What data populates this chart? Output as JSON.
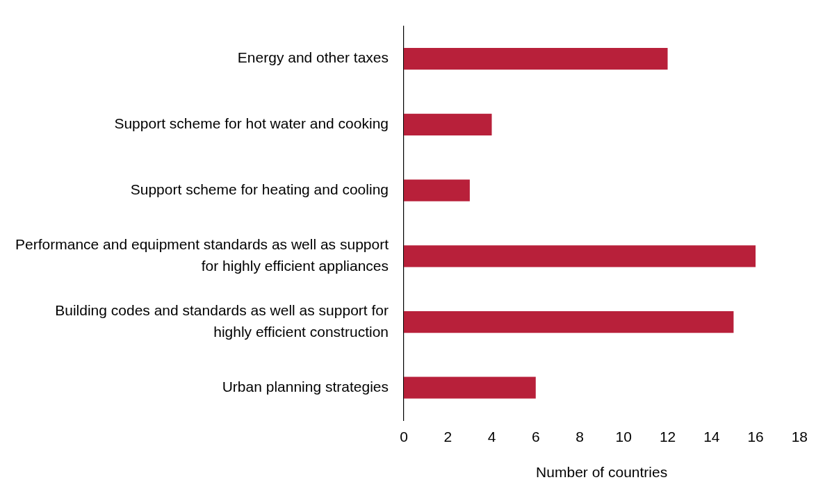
{
  "chart_data": {
    "type": "bar",
    "orientation": "horizontal",
    "xlabel": "Number of countries",
    "categories": [
      "Energy and other taxes",
      "Support scheme for hot water and cooking",
      "Support scheme for heating and cooling",
      "Performance and equipment standards as well as support for highly efficient appliances",
      "Building codes and standards as well as support for highly efficient construction",
      "Urban planning strategies"
    ],
    "values": [
      12,
      4,
      3,
      16,
      15,
      6
    ],
    "color": "#b8203a",
    "xlim": [
      0,
      18
    ],
    "xticks": [
      0,
      2,
      4,
      6,
      8,
      10,
      12,
      14,
      16,
      18
    ],
    "grid": false,
    "legend": false
  }
}
